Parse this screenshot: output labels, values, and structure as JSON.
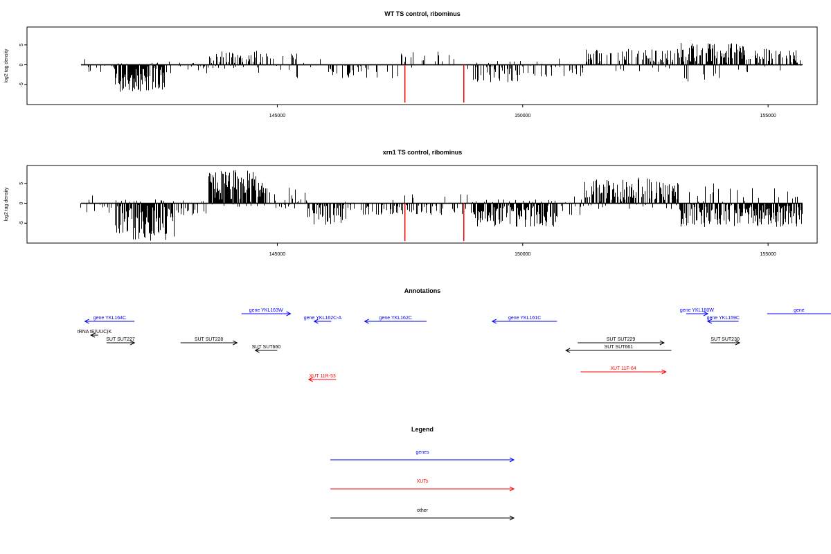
{
  "chart_data": [
    {
      "type": "bar",
      "title": "WT TS control, ribominus",
      "ylabel": "log2 tag density",
      "xlabel": "",
      "xlim": [
        139900,
        156000
      ],
      "ylim": [
        -10,
        9.5
      ],
      "xticks": [
        145000,
        150000,
        155000
      ],
      "yticks": [
        5,
        0,
        -5
      ],
      "track_range": [
        141000,
        155700
      ],
      "highlight_color": "#ff0000",
      "highlights": [
        {
          "x": 147600,
          "value": -9.5
        },
        {
          "x": 148800,
          "value": -9.5
        }
      ],
      "segments": [
        {
          "from": 141000,
          "to": 141700,
          "density": 0.25,
          "min": -2,
          "max": 2
        },
        {
          "from": 141700,
          "to": 142700,
          "density": 0.95,
          "min": -6.8,
          "max": 0.6
        },
        {
          "from": 142700,
          "to": 143600,
          "density": 0.35,
          "min": -3,
          "max": 1
        },
        {
          "from": 143600,
          "to": 144600,
          "density": 0.7,
          "min": -1,
          "max": 4
        },
        {
          "from": 144600,
          "to": 145400,
          "density": 0.35,
          "min": -2,
          "max": 3
        },
        {
          "from": 145400,
          "to": 147500,
          "density": 0.18,
          "min": -3.5,
          "max": 2
        },
        {
          "from": 147500,
          "to": 149000,
          "density": 0.18,
          "min": -3,
          "max": 3.5
        },
        {
          "from": 149000,
          "to": 150500,
          "density": 0.45,
          "min": -4.5,
          "max": 1
        },
        {
          "from": 150500,
          "to": 151200,
          "density": 0.3,
          "min": -3,
          "max": 2
        },
        {
          "from": 151200,
          "to": 153200,
          "density": 0.45,
          "min": -2,
          "max": 4
        },
        {
          "from": 153200,
          "to": 154500,
          "density": 0.85,
          "min": -4.5,
          "max": 5.5
        },
        {
          "from": 154500,
          "to": 155700,
          "density": 0.5,
          "min": -2,
          "max": 4
        }
      ]
    },
    {
      "type": "bar",
      "title": "xrn1 TS control, ribominus",
      "ylabel": "log2 tag density",
      "xlabel": "",
      "xlim": [
        139900,
        156000
      ],
      "ylim": [
        -10,
        9.5
      ],
      "xticks": [
        145000,
        150000,
        155000
      ],
      "yticks": [
        5,
        0,
        -5
      ],
      "track_range": [
        141000,
        155700
      ],
      "highlight_color": "#ff0000",
      "highlights": [
        {
          "x": 147600,
          "value": -9.5
        },
        {
          "x": 148800,
          "value": -9.5
        }
      ],
      "segments": [
        {
          "from": 141000,
          "to": 141700,
          "density": 0.35,
          "min": -2.5,
          "max": 2.5
        },
        {
          "from": 141700,
          "to": 142900,
          "density": 1.0,
          "min": -9.5,
          "max": 1
        },
        {
          "from": 142900,
          "to": 143600,
          "density": 0.4,
          "min": -3,
          "max": 2
        },
        {
          "from": 143600,
          "to": 144700,
          "density": 1.0,
          "min": -1,
          "max": 8.5
        },
        {
          "from": 144700,
          "to": 145600,
          "density": 0.6,
          "min": -1.5,
          "max": 4
        },
        {
          "from": 145600,
          "to": 146400,
          "density": 0.7,
          "min": -5.5,
          "max": 1
        },
        {
          "from": 146400,
          "to": 149000,
          "density": 0.35,
          "min": -3,
          "max": 2.5
        },
        {
          "from": 149000,
          "to": 150700,
          "density": 0.95,
          "min": -6,
          "max": 1
        },
        {
          "from": 150700,
          "to": 151200,
          "density": 0.35,
          "min": -3,
          "max": 2
        },
        {
          "from": 151200,
          "to": 153200,
          "density": 0.75,
          "min": -1.5,
          "max": 6.5
        },
        {
          "from": 153200,
          "to": 155700,
          "density": 0.9,
          "min": -6,
          "max": 5
        }
      ]
    }
  ],
  "annotations": {
    "title": "Annotations",
    "features": [
      {
        "label": "tRNA tE(UUC)K",
        "color": "#000000",
        "from": 141350,
        "to": 141200,
        "row": 2
      },
      {
        "label": "gene YKL164C",
        "color": "#0000ff",
        "from": 142090,
        "to": 141080,
        "row": 1
      },
      {
        "label": "SUT SUT227",
        "color": "#000000",
        "from": 141520,
        "to": 142090,
        "row": 3
      },
      {
        "label": "SUT SUT228",
        "color": "#000000",
        "from": 143030,
        "to": 144180,
        "row": 3
      },
      {
        "label": "gene YKL163W",
        "color": "#0000ff",
        "from": 144270,
        "to": 145270,
        "row": 0
      },
      {
        "label": "SUT SUT660",
        "color": "#000000",
        "from": 145000,
        "to": 144550,
        "row": 4
      },
      {
        "label": "gene YKL162C-A",
        "color": "#0000ff",
        "from": 146100,
        "to": 145750,
        "row": 1
      },
      {
        "label": "XUT 11R-53",
        "color": "#ff0000",
        "from": 146200,
        "to": 145640,
        "row": 6
      },
      {
        "label": "gene YKL162C",
        "color": "#0000ff",
        "from": 148040,
        "to": 146780,
        "row": 1
      },
      {
        "label": "gene YKL161C",
        "color": "#0000ff",
        "from": 150700,
        "to": 149380,
        "row": 1
      },
      {
        "label": "SUT SUT229",
        "color": "#000000",
        "from": 151120,
        "to": 152880,
        "row": 3
      },
      {
        "label": "SUT SUT661",
        "color": "#000000",
        "from": 153030,
        "to": 150880,
        "row": 4
      },
      {
        "label": "XUT 11F-64",
        "color": "#ff0000",
        "from": 151180,
        "to": 152920,
        "row": 5
      },
      {
        "label": "gene YKL160W",
        "color": "#0000ff",
        "from": 153330,
        "to": 153770,
        "row": 0
      },
      {
        "label": "gene YKL159C",
        "color": "#0000ff",
        "from": 154400,
        "to": 153770,
        "row": 1
      },
      {
        "label": "SUT SUT230",
        "color": "#000000",
        "from": 153830,
        "to": 154420,
        "row": 3
      },
      {
        "label": "gene",
        "color": "#0000ff",
        "from": 154980,
        "to": 156400,
        "row": 0
      }
    ]
  },
  "legend": {
    "title": "Legend",
    "items": [
      {
        "label": "genes",
        "color": "#0000ff"
      },
      {
        "label": "XUTs",
        "color": "#ff0000"
      },
      {
        "label": "other",
        "color": "#000000"
      }
    ]
  }
}
